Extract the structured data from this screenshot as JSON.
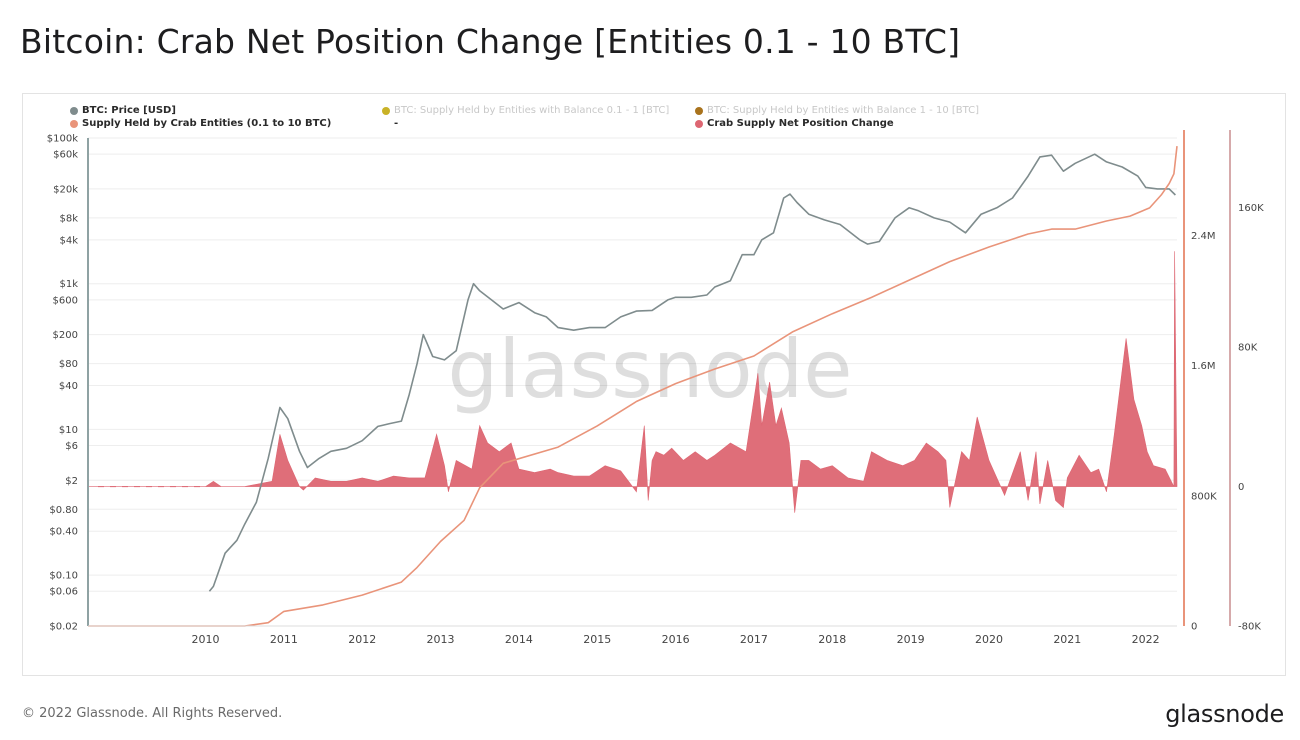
{
  "page": {
    "title": "Bitcoin: Crab Net Position Change [Entities 0.1 - 10 BTC]",
    "footer": "© 2022 Glassnode. All Rights Reserved.",
    "brand": "glassnode",
    "watermark": "glassnode"
  },
  "legend": [
    {
      "label": "BTC: Price [USD]",
      "color": "#7f8c8d",
      "style": "bold"
    },
    {
      "label": "BTC: Supply Held by Entities with Balance 0.1 - 1 [BTC]",
      "color": "#c9b227",
      "style": "muted"
    },
    {
      "label": "BTC: Supply Held by Entities with Balance 1 - 10 [BTC]",
      "color": "#a9731d",
      "style": "muted"
    },
    {
      "label": "Supply Held by Crab Entities (0.1 to 10 BTC)",
      "color": "#e9947a",
      "style": "bold"
    },
    {
      "label": "-",
      "color": "",
      "style": "bold"
    },
    {
      "label": "Crab Supply Net Position Change",
      "color": "#dd6672",
      "style": "bold"
    }
  ],
  "chart_data": {
    "type": "line",
    "title": "Bitcoin: Crab Net Position Change [Entities 0.1 - 10 BTC]",
    "x_axis": {
      "ticks": [
        "2010",
        "2011",
        "2012",
        "2013",
        "2014",
        "2015",
        "2016",
        "2017",
        "2018",
        "2019",
        "2020",
        "2021",
        "2022"
      ],
      "range": [
        2009.0,
        2022.9
      ]
    },
    "y_left": {
      "scale": "log",
      "range": [
        0.02,
        100000
      ],
      "tick_labels": [
        "$100k",
        "$60k",
        "$20k",
        "$8k",
        "$4k",
        "$1k",
        "$600",
        "$200",
        "$80",
        "$40",
        "$10",
        "$6",
        "$2",
        "$0.80",
        "$0.40",
        "$0.10",
        "$0.06",
        "$0.02"
      ],
      "tick_values": [
        100000,
        60000,
        20000,
        8000,
        4000,
        1000,
        600,
        200,
        80,
        40,
        10,
        6,
        2,
        0.8,
        0.4,
        0.1,
        0.06,
        0.02
      ]
    },
    "y_right1": {
      "range": [
        0,
        3000000
      ],
      "tick_labels": [
        "2.4M",
        "1.6M",
        "800K",
        "0"
      ],
      "tick_values": [
        2400000,
        1600000,
        800000,
        0
      ]
    },
    "y_right2": {
      "range": [
        -80000,
        200000
      ],
      "tick_labels": [
        "160K",
        "80K",
        "0",
        "-80K"
      ],
      "tick_values": [
        160000,
        80000,
        0,
        -80000
      ]
    },
    "series": [
      {
        "name": "BTC: Price [USD]",
        "color": "#7f8c8d",
        "axis": "left",
        "type": "line",
        "x": [
          2010.55,
          2010.6,
          2010.75,
          2010.9,
          2011.0,
          2011.15,
          2011.3,
          2011.45,
          2011.55,
          2011.7,
          2011.8,
          2011.95,
          2012.1,
          2012.3,
          2012.5,
          2012.7,
          2012.85,
          2013.0,
          2013.1,
          2013.2,
          2013.28,
          2013.4,
          2013.55,
          2013.7,
          2013.85,
          2013.92,
          2014.0,
          2014.15,
          2014.3,
          2014.5,
          2014.7,
          2014.85,
          2015.0,
          2015.2,
          2015.4,
          2015.6,
          2015.8,
          2016.0,
          2016.2,
          2016.4,
          2016.5,
          2016.7,
          2016.9,
          2017.0,
          2017.2,
          2017.35,
          2017.5,
          2017.6,
          2017.75,
          2017.88,
          2017.96,
          2018.05,
          2018.2,
          2018.4,
          2018.6,
          2018.85,
          2018.95,
          2019.1,
          2019.3,
          2019.48,
          2019.6,
          2019.8,
          2020.0,
          2020.2,
          2020.4,
          2020.6,
          2020.8,
          2021.0,
          2021.15,
          2021.3,
          2021.45,
          2021.6,
          2021.85,
          2022.0,
          2022.2,
          2022.4,
          2022.5,
          2022.65,
          2022.8,
          2022.88
        ],
        "y": [
          0.06,
          0.07,
          0.2,
          0.3,
          0.5,
          1,
          4,
          20,
          14,
          5,
          3,
          4,
          5,
          5.5,
          7,
          11,
          12,
          13,
          30,
          80,
          200,
          100,
          90,
          120,
          600,
          1000,
          800,
          600,
          450,
          550,
          400,
          350,
          250,
          230,
          250,
          250,
          350,
          420,
          430,
          600,
          650,
          650,
          700,
          900,
          1100,
          2500,
          2500,
          4000,
          5000,
          15000,
          17000,
          13000,
          9000,
          7500,
          6500,
          4000,
          3500,
          3800,
          8000,
          11000,
          10000,
          8000,
          7000,
          5000,
          9000,
          11000,
          15000,
          30000,
          55000,
          58000,
          35000,
          45000,
          60000,
          47000,
          40000,
          30000,
          21000,
          20000,
          20000,
          16500
        ]
      },
      {
        "name": "Supply Held by Crab Entities (0.1 to 10 BTC)",
        "color": "#e9947a",
        "axis": "right1",
        "type": "line",
        "x": [
          2009.0,
          2011.0,
          2011.3,
          2011.5,
          2012.0,
          2012.5,
          2013.0,
          2013.2,
          2013.5,
          2013.8,
          2014.0,
          2014.3,
          2015.0,
          2015.5,
          2016.0,
          2016.5,
          2017.0,
          2017.5,
          2018.0,
          2018.5,
          2019.0,
          2019.5,
          2020.0,
          2020.5,
          2021.0,
          2021.3,
          2021.6,
          2022.0,
          2022.3,
          2022.55,
          2022.7,
          2022.8,
          2022.86,
          2022.9
        ],
        "y": [
          0,
          0,
          20000,
          90000,
          130000,
          190000,
          270000,
          360000,
          520000,
          650000,
          850000,
          1000000,
          1100000,
          1230000,
          1380000,
          1490000,
          1580000,
          1660000,
          1810000,
          1920000,
          2020000,
          2130000,
          2240000,
          2330000,
          2410000,
          2440000,
          2440000,
          2490000,
          2520000,
          2570000,
          2650000,
          2720000,
          2780000,
          2950000
        ]
      },
      {
        "name": "Crab Supply Net Position Change",
        "color": "#dd6672",
        "axis": "right2",
        "type": "area",
        "x": [
          2009.0,
          2010.5,
          2010.6,
          2010.7,
          2011.0,
          2011.35,
          2011.45,
          2011.55,
          2011.7,
          2011.75,
          2011.9,
          2012.1,
          2012.3,
          2012.5,
          2012.7,
          2012.9,
          2013.1,
          2013.3,
          2013.45,
          2013.55,
          2013.6,
          2013.7,
          2013.9,
          2014.0,
          2014.1,
          2014.25,
          2014.4,
          2014.5,
          2014.7,
          2014.9,
          2015.0,
          2015.2,
          2015.4,
          2015.6,
          2015.8,
          2016.0,
          2016.1,
          2016.15,
          2016.2,
          2016.25,
          2016.35,
          2016.45,
          2016.6,
          2016.75,
          2016.9,
          2017.0,
          2017.2,
          2017.4,
          2017.55,
          2017.6,
          2017.7,
          2017.78,
          2017.85,
          2017.95,
          2018.02,
          2018.1,
          2018.2,
          2018.35,
          2018.5,
          2018.7,
          2018.9,
          2019.0,
          2019.2,
          2019.4,
          2019.55,
          2019.7,
          2019.85,
          2019.95,
          2020.0,
          2020.15,
          2020.25,
          2020.35,
          2020.5,
          2020.7,
          2020.9,
          2021.0,
          2021.1,
          2021.15,
          2021.25,
          2021.35,
          2021.45,
          2021.5,
          2021.65,
          2021.8,
          2021.9,
          2022.0,
          2022.1,
          2022.25,
          2022.35,
          2022.45,
          2022.52,
          2022.6,
          2022.75,
          2022.86,
          2022.87,
          2022.9
        ],
        "y": [
          0,
          0,
          3000,
          0,
          0,
          3000,
          30000,
          15000,
          0,
          -2000,
          5000,
          3000,
          3000,
          5000,
          3000,
          6000,
          5000,
          5000,
          30000,
          12000,
          -3000,
          15000,
          10000,
          35000,
          25000,
          20000,
          25000,
          10000,
          8000,
          10000,
          8000,
          6000,
          6000,
          12000,
          9000,
          -3000,
          35000,
          -8000,
          15000,
          20000,
          18000,
          22000,
          15000,
          20000,
          15000,
          18000,
          25000,
          20000,
          65000,
          35000,
          60000,
          35000,
          45000,
          25000,
          -15000,
          15000,
          15000,
          10000,
          12000,
          5000,
          3000,
          20000,
          15000,
          12000,
          15000,
          25000,
          20000,
          15000,
          -12000,
          20000,
          15000,
          40000,
          15000,
          -5000,
          20000,
          -8000,
          20000,
          -10000,
          15000,
          -8000,
          -12000,
          5000,
          18000,
          8000,
          10000,
          -3000,
          30000,
          85000,
          50000,
          35000,
          20000,
          12000,
          10000,
          0,
          135000,
          0
        ]
      }
    ],
    "grid": true
  }
}
